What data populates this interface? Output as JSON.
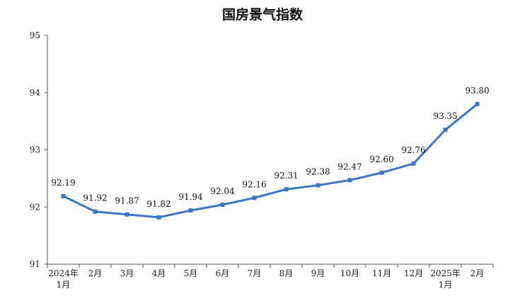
{
  "chart_data": {
    "type": "line",
    "title": "国房景气指数",
    "xlabel": "",
    "ylabel": "",
    "categories": [
      [
        "2024年",
        "1月"
      ],
      [
        "2月"
      ],
      [
        "3月"
      ],
      [
        "4月"
      ],
      [
        "5月"
      ],
      [
        "6月"
      ],
      [
        "7月"
      ],
      [
        "8月"
      ],
      [
        "9月"
      ],
      [
        "10月"
      ],
      [
        "11月"
      ],
      [
        "12月"
      ],
      [
        "2025年",
        "1月"
      ],
      [
        "2月"
      ]
    ],
    "series": [
      {
        "values": [
          92.19,
          91.92,
          91.87,
          91.82,
          91.94,
          92.04,
          92.16,
          92.31,
          92.38,
          92.47,
          92.6,
          92.76,
          93.35,
          93.8
        ],
        "labels": [
          "92.19",
          "91.92",
          "91.87",
          "91.82",
          "91.94",
          "92.04",
          "92.16",
          "92.31",
          "92.38",
          "92.47",
          "92.60",
          "92.76",
          "93.35",
          "93.80"
        ],
        "color": "#3a78c2"
      }
    ],
    "ylim": [
      91,
      95
    ],
    "yticks": [
      "91",
      "92",
      "93",
      "94",
      "95"
    ],
    "grid": false,
    "legend": "none"
  }
}
